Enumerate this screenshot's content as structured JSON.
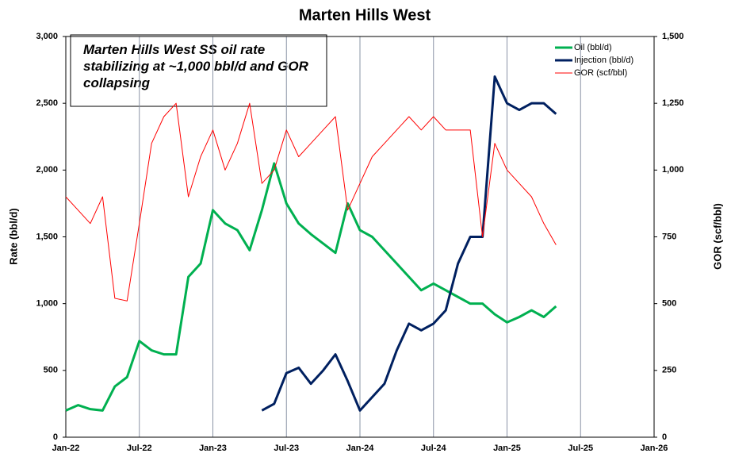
{
  "chart_data": {
    "type": "line",
    "title": "Marten Hills West",
    "annotation": "Marten Hills West SS oil rate stabilizing at ~1,000 bbl/d and GOR collapsing",
    "ylabel": "Rate (bbl/d)",
    "y2label": "GOR (scf/bbl)",
    "x": [
      "2022-01",
      "2022-02",
      "2022-03",
      "2022-04",
      "2022-05",
      "2022-06",
      "2022-07",
      "2022-08",
      "2022-09",
      "2022-10",
      "2022-11",
      "2022-12",
      "2023-01",
      "2023-02",
      "2023-03",
      "2023-04",
      "2023-05",
      "2023-06",
      "2023-07",
      "2023-08",
      "2023-09",
      "2023-10",
      "2023-11",
      "2023-12",
      "2024-01",
      "2024-02",
      "2024-03",
      "2024-04",
      "2024-05",
      "2024-06",
      "2024-07",
      "2024-08",
      "2024-09",
      "2024-10",
      "2024-11",
      "2024-12",
      "2025-01",
      "2025-02",
      "2025-03",
      "2025-04",
      "2025-05"
    ],
    "xlim": [
      "2022-01",
      "2026-01"
    ],
    "xticks": [
      {
        "value": "2022-01",
        "label": "Jan-22"
      },
      {
        "value": "2022-07",
        "label": "Jul-22"
      },
      {
        "value": "2023-01",
        "label": "Jan-23"
      },
      {
        "value": "2023-07",
        "label": "Jul-23"
      },
      {
        "value": "2024-01",
        "label": "Jan-24"
      },
      {
        "value": "2024-07",
        "label": "Jul-24"
      },
      {
        "value": "2025-01",
        "label": "Jan-25"
      },
      {
        "value": "2025-07",
        "label": "Jul-25"
      },
      {
        "value": "2026-01",
        "label": "Jan-26"
      }
    ],
    "ylim": [
      0,
      3000
    ],
    "yticks": [
      0,
      {
        "value": 500,
        "label": "500"
      },
      {
        "value": 1000,
        "label": "1,000"
      },
      {
        "value": 1500,
        "label": "1,500"
      },
      {
        "value": 2000,
        "label": "2,000"
      },
      {
        "value": 2500,
        "label": "2,500"
      },
      {
        "value": 3000,
        "label": "3,000"
      }
    ],
    "y2lim": [
      0,
      1500
    ],
    "y2ticks": [
      0,
      250,
      500,
      750,
      {
        "value": 1000,
        "label": "1,000"
      },
      {
        "value": 1250,
        "label": "1,250"
      },
      {
        "value": 1500,
        "label": "1,500"
      }
    ],
    "grid": true,
    "legend": "upper right",
    "series": [
      {
        "name": "Oil (bbl/d)",
        "color": "#00b050",
        "width": 3,
        "values": [
          200,
          240,
          210,
          200,
          380,
          450,
          720,
          650,
          620,
          620,
          1200,
          1300,
          1700,
          1600,
          1550,
          1400,
          1700,
          2050,
          1750,
          1600,
          1520,
          1450,
          1380,
          1750,
          1550,
          1500,
          1400,
          1300,
          1200,
          1100,
          1150,
          1100,
          1050,
          1000,
          1000,
          920,
          860,
          900,
          950,
          900,
          980
        ]
      },
      {
        "name": "Injection (bbl/d)",
        "color": "#002060",
        "width": 3,
        "values": [
          null,
          null,
          null,
          null,
          null,
          null,
          null,
          null,
          null,
          null,
          null,
          null,
          null,
          null,
          null,
          null,
          200,
          250,
          480,
          520,
          400,
          500,
          620,
          420,
          200,
          300,
          400,
          650,
          850,
          800,
          850,
          950,
          1300,
          1500,
          1500,
          2700,
          2500,
          2450,
          2500,
          2500,
          2420
        ]
      },
      {
        "name": "GOR (scf/bbl)",
        "color": "#ff0000",
        "width": 1,
        "axis": "y2",
        "values": [
          900,
          850,
          800,
          900,
          520,
          510,
          800,
          1100,
          1200,
          1250,
          900,
          1050,
          1150,
          1000,
          1100,
          1250,
          950,
          1000,
          1150,
          1050,
          1100,
          1150,
          1200,
          850,
          950,
          1050,
          1100,
          1150,
          1200,
          1150,
          1200,
          1150,
          1150,
          1150,
          750,
          1100,
          1000,
          950,
          900,
          800,
          720
        ]
      }
    ]
  }
}
